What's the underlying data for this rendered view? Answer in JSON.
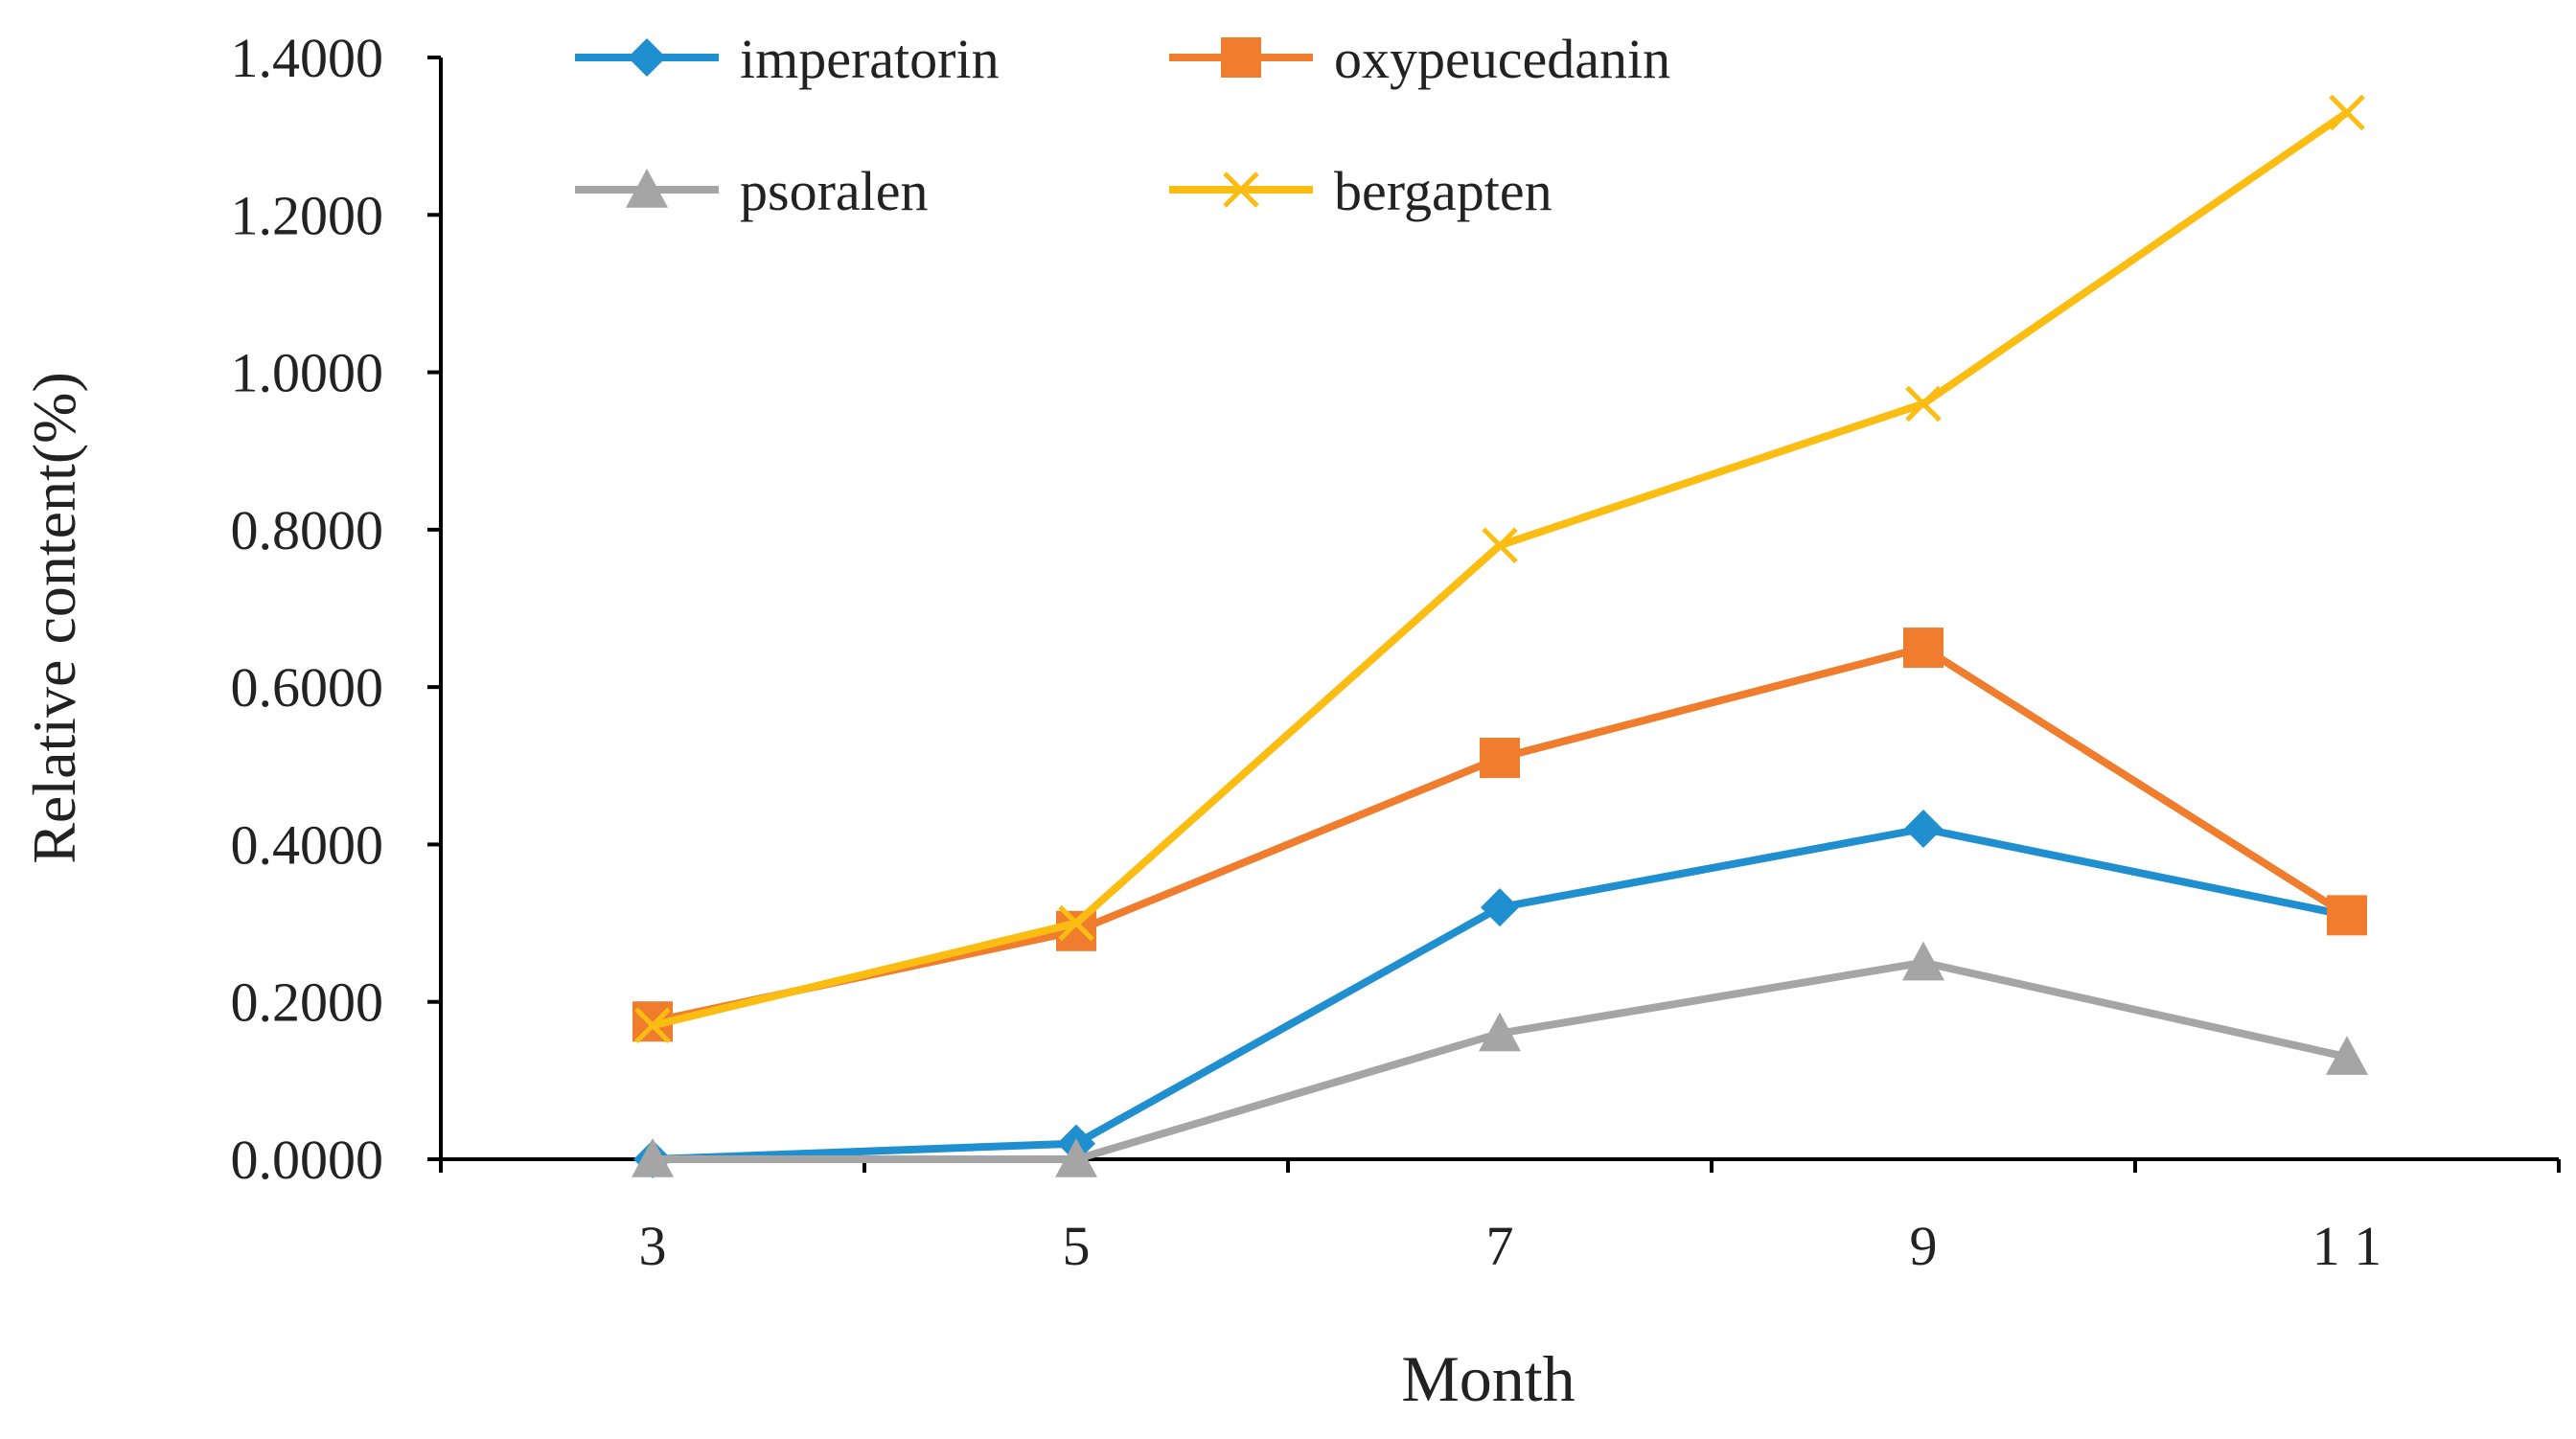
{
  "chart_data": {
    "type": "line",
    "title": "",
    "xlabel": "Month",
    "ylabel": "Relative content(%)",
    "categories": [
      "3",
      "5",
      "7",
      "9",
      "1 1"
    ],
    "ylim": [
      0,
      1.4
    ],
    "yticks": [
      "0.0000",
      "0.2000",
      "0.4000",
      "0.6000",
      "0.8000",
      "1.0000",
      "1.2000",
      "1.4000"
    ],
    "grid": false,
    "legend_position": "top",
    "series": [
      {
        "name": "imperatorin",
        "color": "#1f8fd0",
        "marker": "diamond",
        "values": [
          0.0,
          0.02,
          0.32,
          0.42,
          0.31
        ]
      },
      {
        "name": "oxypeucedanin",
        "color": "#f07d2d",
        "marker": "square",
        "values": [
          0.175,
          0.29,
          0.51,
          0.65,
          0.31
        ]
      },
      {
        "name": "psoralen",
        "color": "#a5a5a5",
        "marker": "triangle",
        "values": [
          0.0,
          0.0,
          0.16,
          0.25,
          0.13
        ]
      },
      {
        "name": "bergapten",
        "color": "#fbbd12",
        "marker": "x",
        "values": [
          0.17,
          0.3,
          0.78,
          0.96,
          1.33
        ]
      }
    ]
  }
}
